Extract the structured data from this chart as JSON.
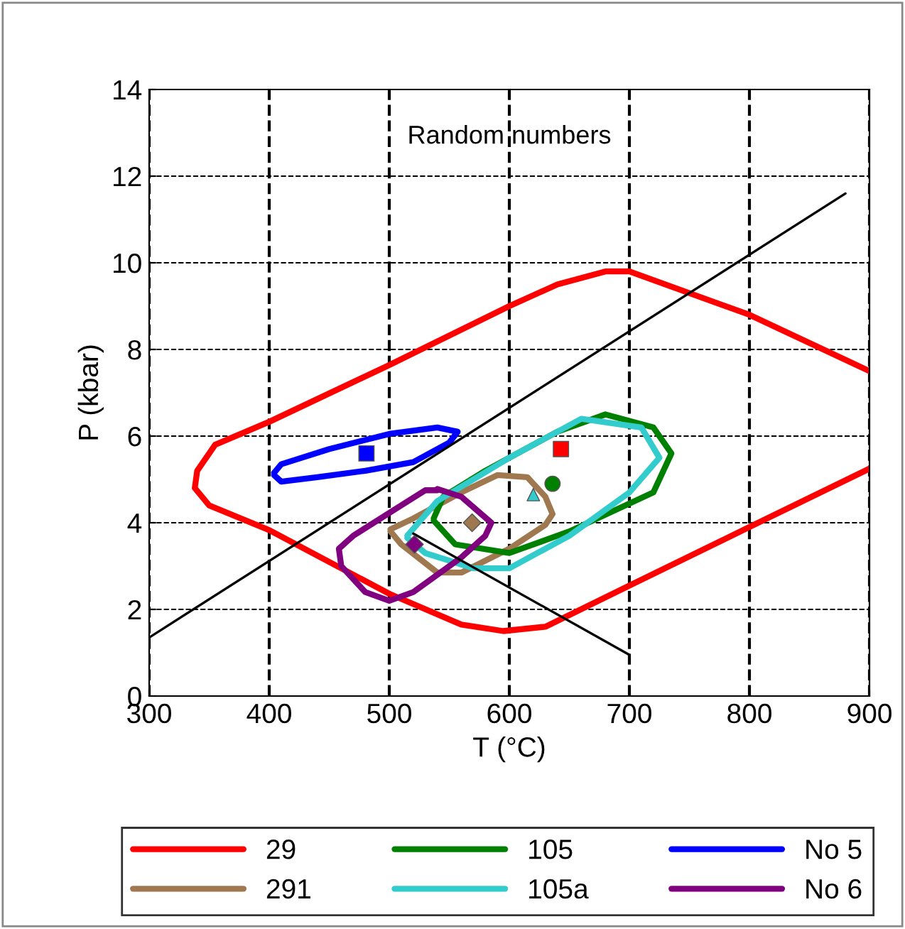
{
  "chart_data": {
    "type": "line",
    "title": "Random numbers",
    "xlabel": "T (°C)",
    "ylabel": "P (kbar)",
    "xlim": [
      300,
      900
    ],
    "xticks": [
      300,
      400,
      500,
      600,
      700,
      800,
      900
    ],
    "ylim": [
      0,
      14
    ],
    "yticks": [
      0,
      2,
      4,
      6,
      8,
      10,
      12,
      14
    ],
    "grid": true,
    "legend": "bottom",
    "marker": "none",
    "series": [
      {
        "name": "29",
        "color": "#ff0000",
        "x": [
          900,
          800,
          720,
          700,
          680,
          640,
          600,
          500,
          400,
          355,
          340,
          338,
          350,
          400,
          500,
          560,
          595,
          630,
          700,
          800,
          900
        ],
        "values": [
          7.5,
          8.8,
          9.6,
          9.8,
          9.8,
          9.5,
          9.0,
          7.64,
          6.33,
          5.8,
          5.2,
          4.8,
          4.4,
          3.83,
          2.36,
          1.65,
          1.5,
          1.6,
          2.55,
          3.9,
          5.25
        ]
      },
      {
        "name": "291",
        "color": "#a07850",
        "x": [
          501,
          520,
          560,
          590,
          615,
          630,
          636,
          630,
          600,
          560,
          540,
          510,
          501
        ],
        "values": [
          3.85,
          4.1,
          4.7,
          5.1,
          5.05,
          4.6,
          4.2,
          3.95,
          3.4,
          2.85,
          2.85,
          3.5,
          3.8
        ]
      },
      {
        "name": "105",
        "color": "#008000",
        "x": [
          537,
          545,
          580,
          640,
          680,
          720,
          735,
          720,
          650,
          600,
          555,
          537
        ],
        "values": [
          4.1,
          4.6,
          5.2,
          6.1,
          6.5,
          6.2,
          5.6,
          4.7,
          3.8,
          3.3,
          3.5,
          4.05
        ]
      },
      {
        "name": "105a",
        "color": "#33cccc",
        "x": [
          515,
          540,
          600,
          660,
          710,
          725,
          700,
          650,
          600,
          570,
          530,
          515
        ],
        "values": [
          3.7,
          4.5,
          5.5,
          6.4,
          6.2,
          5.5,
          4.7,
          3.7,
          2.95,
          2.95,
          3.3,
          3.65
        ]
      },
      {
        "name": "No 5",
        "color": "#0000ff",
        "x": [
          404,
          410,
          450,
          500,
          540,
          557,
          550,
          520,
          480,
          440,
          410,
          404
        ],
        "values": [
          5.15,
          5.35,
          5.7,
          6.05,
          6.2,
          6.1,
          5.85,
          5.4,
          5.2,
          5.05,
          4.95,
          5.1
        ]
      },
      {
        "name": "No 6",
        "color": "#800080",
        "x": [
          540,
          560,
          585,
          580,
          560,
          520,
          500,
          480,
          460,
          458,
          470,
          510,
          530,
          540
        ],
        "values": [
          4.78,
          4.6,
          4.0,
          3.7,
          3.2,
          2.4,
          2.2,
          2.4,
          3.0,
          3.4,
          3.7,
          4.4,
          4.75,
          4.75
        ]
      },
      {
        "color": "#000000",
        "x": [
          300,
          880
        ],
        "values": [
          1.35,
          11.6
        ]
      },
      {
        "color": "#000000",
        "x": [
          520,
          700
        ],
        "values": [
          3.75,
          0.95
        ]
      },
      {
        "type": "scatter",
        "marker": "square",
        "color": "#ff0000",
        "x": [
          643
        ],
        "values": [
          5.7
        ]
      },
      {
        "type": "scatter",
        "marker": "circle",
        "color": "#008000",
        "x": [
          636
        ],
        "values": [
          4.9
        ]
      },
      {
        "type": "scatter",
        "marker": "triangle",
        "color": "#33cccc",
        "x": [
          620
        ],
        "values": [
          4.65
        ]
      },
      {
        "type": "scatter",
        "marker": "diamond",
        "color": "#a07850",
        "x": [
          569
        ],
        "values": [
          4.0
        ]
      },
      {
        "type": "scatter",
        "marker": "square",
        "color": "#0000ff",
        "x": [
          481
        ],
        "values": [
          5.6
        ]
      },
      {
        "type": "scatter",
        "marker": "diamond",
        "color": "#800080",
        "x": [
          521
        ],
        "values": [
          3.5
        ]
      }
    ]
  }
}
